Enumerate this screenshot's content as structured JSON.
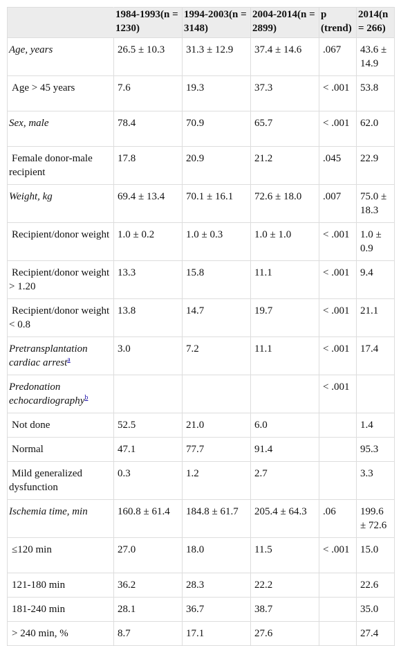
{
  "header": {
    "col0": "",
    "col1": "1984-1993(n = 1230)",
    "col2": "1994-2003(n = 3148)",
    "col3": "2004-2014(n = 2899)",
    "col4": "p (trend)",
    "col5": "2014(n = 266)"
  },
  "rows": [
    {
      "label": "Age, years",
      "v1": "26.5 ± 10.3",
      "v2": "31.3 ± 12.9",
      "v3": "37.4 ± 14.6",
      "p": ".067",
      "v5": "43.6 ± 14.9"
    },
    {
      "label": "Age > 45 years",
      "v1": "7.6",
      "v2": "19.3",
      "v3": "37.3",
      "p": "< .001",
      "v5": "53.8"
    },
    {
      "label": "Sex, male",
      "v1": "78.4",
      "v2": "70.9",
      "v3": "65.7",
      "p": "< .001",
      "v5": "62.0"
    },
    {
      "label": "Female donor-male recipient",
      "v1": "17.8",
      "v2": "20.9",
      "v3": "21.2",
      "p": ".045",
      "v5": "22.9"
    },
    {
      "label": "Weight, kg",
      "v1": "69.4 ± 13.4",
      "v2": "70.1 ± 16.1",
      "v3": "72.6 ± 18.0",
      "p": ".007",
      "v5": "75.0 ± 18.3"
    },
    {
      "label": "Recipient/donor weight",
      "v1": "1.0 ± 0.2",
      "v2": "1.0 ± 0.3",
      "v3": "1.0 ± 1.0",
      "p": "< .001",
      "v5": "1.0 ± 0.9"
    },
    {
      "label": "Recipient/donor weight > 1.20",
      "v1": "13.3",
      "v2": "15.8",
      "v3": "11.1",
      "p": "< .001",
      "v5": "9.4"
    },
    {
      "label": "Recipient/donor weight < 0.8",
      "v1": "13.8",
      "v2": "14.7",
      "v3": "19.7",
      "p": "< .001",
      "v5": "21.1"
    },
    {
      "label": "Pretransplantation cardiac arrest",
      "footnote": "a",
      "v1": "3.0",
      "v2": "7.2",
      "v3": "11.1",
      "p": "< .001",
      "v5": "17.4"
    },
    {
      "label": "Predonation echocardiography",
      "footnote": "b",
      "v1": "",
      "v2": "",
      "v3": "",
      "p": "< .001",
      "v5": ""
    },
    {
      "label": "Not done",
      "v1": "52.5",
      "v2": "21.0",
      "v3": "6.0",
      "p": "",
      "v5": "1.4"
    },
    {
      "label": "Normal",
      "v1": "47.1",
      "v2": "77.7",
      "v3": "91.4",
      "p": "",
      "v5": "95.3"
    },
    {
      "label": "Mild generalized dysfunction",
      "v1": "0.3",
      "v2": "1.2",
      "v3": "2.7",
      "p": "",
      "v5": "3.3"
    },
    {
      "label": "Ischemia time, min",
      "v1": "160.8 ± 61.4",
      "v2": "184.8 ± 61.7",
      "v3": "205.4 ± 64.3",
      "p": ".06",
      "v5": "199.6 ± 72.6"
    },
    {
      "label": "≤120 min",
      "v1": "27.0",
      "v2": "18.0",
      "v3": "11.5",
      "p": "< .001",
      "v5": "15.0"
    },
    {
      "label": "121-180 min",
      "v1": "36.2",
      "v2": "28.3",
      "v3": "22.2",
      "p": "",
      "v5": "22.6"
    },
    {
      "label": "181-240 min",
      "v1": "28.1",
      "v2": "36.7",
      "v3": "38.7",
      "p": "",
      "v5": "35.0"
    },
    {
      "label": "> 240 min, %",
      "v1": "8.7",
      "v2": "17.1",
      "v3": "27.6",
      "p": "",
      "v5": "27.4"
    }
  ]
}
